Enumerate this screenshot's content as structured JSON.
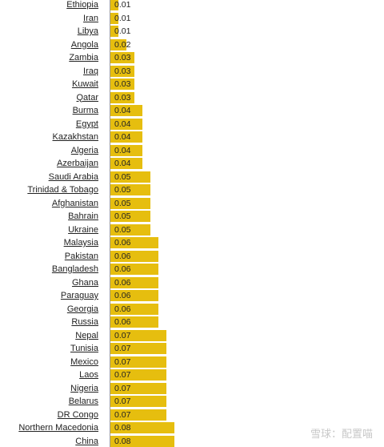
{
  "chart_data": {
    "type": "bar",
    "orientation": "horizontal",
    "categories": [
      "Ethiopia",
      "Iran",
      "Libya",
      "Angola",
      "Zambia",
      "Iraq",
      "Kuwait",
      "Qatar",
      "Burma",
      "Egypt",
      "Kazakhstan",
      "Algeria",
      "Azerbaijan",
      "Saudi Arabia",
      "Trinidad & Tobago",
      "Afghanistan",
      "Bahrain",
      "Ukraine",
      "Malaysia",
      "Pakistan",
      "Bangladesh",
      "Ghana",
      "Paraguay",
      "Georgia",
      "Russia",
      "Nepal",
      "Tunisia",
      "Mexico",
      "Laos",
      "Nigeria",
      "Belarus",
      "DR Congo",
      "Northern Macedonia",
      "China"
    ],
    "values": [
      0.01,
      0.01,
      0.01,
      0.02,
      0.03,
      0.03,
      0.03,
      0.03,
      0.04,
      0.04,
      0.04,
      0.04,
      0.04,
      0.05,
      0.05,
      0.05,
      0.05,
      0.05,
      0.06,
      0.06,
      0.06,
      0.06,
      0.06,
      0.06,
      0.06,
      0.07,
      0.07,
      0.07,
      0.07,
      0.07,
      0.07,
      0.07,
      0.08,
      0.08
    ],
    "value_labels": [
      "0.01",
      "0.01",
      "0.01",
      "0.02",
      "0.03",
      "0.03",
      "0.03",
      "0.03",
      "0.04",
      "0.04",
      "0.04",
      "0.04",
      "0.04",
      "0.05",
      "0.05",
      "0.05",
      "0.05",
      "0.05",
      "0.06",
      "0.06",
      "0.06",
      "0.06",
      "0.06",
      "0.06",
      "0.06",
      "0.07",
      "0.07",
      "0.07",
      "0.07",
      "0.07",
      "0.07",
      "0.07",
      "0.08",
      "0.08"
    ],
    "bar_color": "#e6be0f",
    "grid": false,
    "legend": "none"
  },
  "watermark": "雪球：配置喵"
}
